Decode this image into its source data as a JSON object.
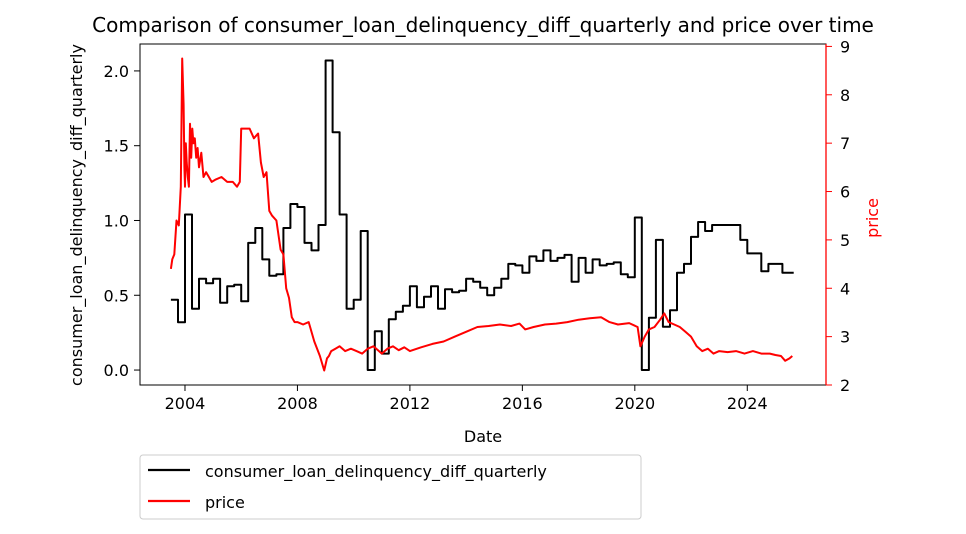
{
  "chart_data": {
    "type": "line",
    "title": "Comparison of consumer_loan_delinquency_diff_quarterly and price over time",
    "xlabel": "Date",
    "ylabel_left": "consumer_loan_delinquency_diff_quarterly",
    "ylabel_right": "price",
    "x_ticks": [
      "2004",
      "2008",
      "2012",
      "2016",
      "2020",
      "2024"
    ],
    "y_left_ticks": [
      "0.0",
      "0.5",
      "1.0",
      "1.5",
      "2.0"
    ],
    "y_right_ticks": [
      "2",
      "3",
      "4",
      "5",
      "6",
      "7",
      "8",
      "9"
    ],
    "xlim": [
      2002.4,
      2026.8
    ],
    "ylim_left": [
      -0.1,
      2.18
    ],
    "ylim_right": [
      2,
      9.05
    ],
    "legend_position": "below-left",
    "grid": false,
    "series": [
      {
        "name": "consumer_loan_delinquency_diff_quarterly",
        "axis": "left",
        "color": "#000000",
        "step": true,
        "x": [
          2003.5,
          2003.75,
          2004.0,
          2004.25,
          2004.5,
          2004.75,
          2005.0,
          2005.25,
          2005.5,
          2005.75,
          2006.0,
          2006.25,
          2006.5,
          2006.75,
          2007.0,
          2007.25,
          2007.5,
          2007.75,
          2008.0,
          2008.25,
          2008.5,
          2008.75,
          2009.0,
          2009.25,
          2009.5,
          2009.75,
          2010.0,
          2010.25,
          2010.5,
          2010.75,
          2011.0,
          2011.25,
          2011.5,
          2011.75,
          2012.0,
          2012.25,
          2012.5,
          2012.75,
          2013.0,
          2013.25,
          2013.5,
          2013.75,
          2014.0,
          2014.25,
          2014.5,
          2014.75,
          2015.0,
          2015.25,
          2015.5,
          2015.75,
          2016.0,
          2016.25,
          2016.5,
          2016.75,
          2017.0,
          2017.25,
          2017.5,
          2017.75,
          2018.0,
          2018.25,
          2018.5,
          2018.75,
          2019.0,
          2019.25,
          2019.5,
          2019.75,
          2020.0,
          2020.25,
          2020.5,
          2020.75,
          2021.0,
          2021.25,
          2021.5,
          2021.75,
          2022.0,
          2022.25,
          2022.5,
          2022.75,
          2023.0,
          2023.25,
          2023.5,
          2023.75,
          2024.0,
          2024.25,
          2024.5,
          2024.75,
          2025.0,
          2025.25,
          2025.5
        ],
        "values": [
          0.47,
          0.32,
          1.04,
          0.41,
          0.61,
          0.58,
          0.61,
          0.45,
          0.56,
          0.57,
          0.46,
          0.85,
          0.95,
          0.74,
          0.63,
          0.64,
          0.95,
          1.11,
          1.09,
          0.85,
          0.8,
          0.97,
          2.07,
          1.59,
          1.04,
          0.41,
          0.47,
          0.93,
          0.0,
          0.26,
          0.11,
          0.34,
          0.39,
          0.43,
          0.56,
          0.42,
          0.49,
          0.56,
          0.41,
          0.54,
          0.52,
          0.53,
          0.61,
          0.59,
          0.55,
          0.5,
          0.55,
          0.61,
          0.71,
          0.7,
          0.65,
          0.76,
          0.73,
          0.8,
          0.73,
          0.75,
          0.77,
          0.59,
          0.75,
          0.65,
          0.74,
          0.7,
          0.71,
          0.72,
          0.64,
          0.62,
          1.02,
          0.0,
          0.35,
          0.87,
          0.29,
          0.4,
          0.65,
          0.71,
          0.89,
          0.99,
          0.93,
          0.97,
          0.97,
          0.97,
          0.97,
          0.87,
          0.78,
          0.78,
          0.66,
          0.71,
          0.71,
          0.65,
          0.65
        ]
      },
      {
        "name": "price",
        "axis": "right",
        "color": "#ff0000",
        "step": false,
        "x": [
          2003.5,
          2003.55,
          2003.62,
          2003.7,
          2003.78,
          2003.85,
          2003.9,
          2003.95,
          2003.98,
          2004.0,
          2004.03,
          2004.06,
          2004.1,
          2004.14,
          2004.18,
          2004.22,
          2004.26,
          2004.3,
          2004.35,
          2004.4,
          2004.45,
          2004.5,
          2004.58,
          2004.66,
          2004.75,
          2004.85,
          2004.95,
          2005.1,
          2005.3,
          2005.5,
          2005.7,
          2005.85,
          2005.95,
          2006.0,
          2006.05,
          2006.15,
          2006.3,
          2006.45,
          2006.6,
          2006.7,
          2006.8,
          2006.9,
          2007.0,
          2007.1,
          2007.25,
          2007.4,
          2007.5,
          2007.6,
          2007.7,
          2007.8,
          2007.9,
          2008.0,
          2008.2,
          2008.4,
          2008.6,
          2008.8,
          2008.95,
          2009.05,
          2009.12,
          2009.2,
          2009.35,
          2009.5,
          2009.7,
          2009.9,
          2010.1,
          2010.3,
          2010.5,
          2010.7,
          2010.9,
          2011.0,
          2011.2,
          2011.4,
          2011.6,
          2011.8,
          2012.0,
          2012.4,
          2012.8,
          2013.2,
          2013.6,
          2014.0,
          2014.4,
          2014.8,
          2015.2,
          2015.6,
          2015.9,
          2016.1,
          2016.4,
          2016.8,
          2017.2,
          2017.6,
          2018.0,
          2018.4,
          2018.8,
          2019.1,
          2019.4,
          2019.8,
          2020.1,
          2020.2,
          2020.35,
          2020.5,
          2020.7,
          2020.9,
          2021.05,
          2021.2,
          2021.4,
          2021.6,
          2021.8,
          2022.0,
          2022.2,
          2022.4,
          2022.6,
          2022.8,
          2023.0,
          2023.3,
          2023.6,
          2023.9,
          2024.2,
          2024.5,
          2024.8,
          2025.0,
          2025.2,
          2025.35,
          2025.5,
          2025.6
        ],
        "values": [
          4.4,
          4.6,
          4.7,
          5.4,
          5.3,
          6.1,
          8.75,
          7.8,
          6.5,
          6.1,
          7.0,
          6.6,
          6.3,
          6.1,
          7.4,
          6.7,
          7.3,
          7.0,
          7.1,
          6.7,
          6.9,
          6.5,
          6.8,
          6.3,
          6.4,
          6.3,
          6.2,
          6.25,
          6.3,
          6.2,
          6.2,
          6.1,
          6.2,
          7.3,
          7.3,
          7.3,
          7.3,
          7.1,
          7.2,
          6.6,
          6.3,
          6.4,
          5.6,
          5.5,
          5.4,
          4.8,
          4.7,
          4.0,
          3.8,
          3.4,
          3.3,
          3.3,
          3.25,
          3.3,
          2.9,
          2.6,
          2.3,
          2.55,
          2.6,
          2.7,
          2.75,
          2.8,
          2.7,
          2.75,
          2.7,
          2.65,
          2.75,
          2.8,
          2.7,
          2.65,
          2.75,
          2.8,
          2.72,
          2.78,
          2.7,
          2.78,
          2.85,
          2.9,
          3.0,
          3.1,
          3.2,
          3.22,
          3.25,
          3.22,
          3.27,
          3.15,
          3.2,
          3.25,
          3.27,
          3.3,
          3.35,
          3.38,
          3.4,
          3.3,
          3.25,
          3.28,
          3.2,
          2.8,
          3.0,
          3.15,
          3.2,
          3.35,
          3.48,
          3.3,
          3.25,
          3.2,
          3.1,
          3.0,
          2.8,
          2.7,
          2.75,
          2.65,
          2.7,
          2.68,
          2.7,
          2.65,
          2.7,
          2.65,
          2.65,
          2.62,
          2.6,
          2.5,
          2.55,
          2.6
        ]
      }
    ]
  }
}
